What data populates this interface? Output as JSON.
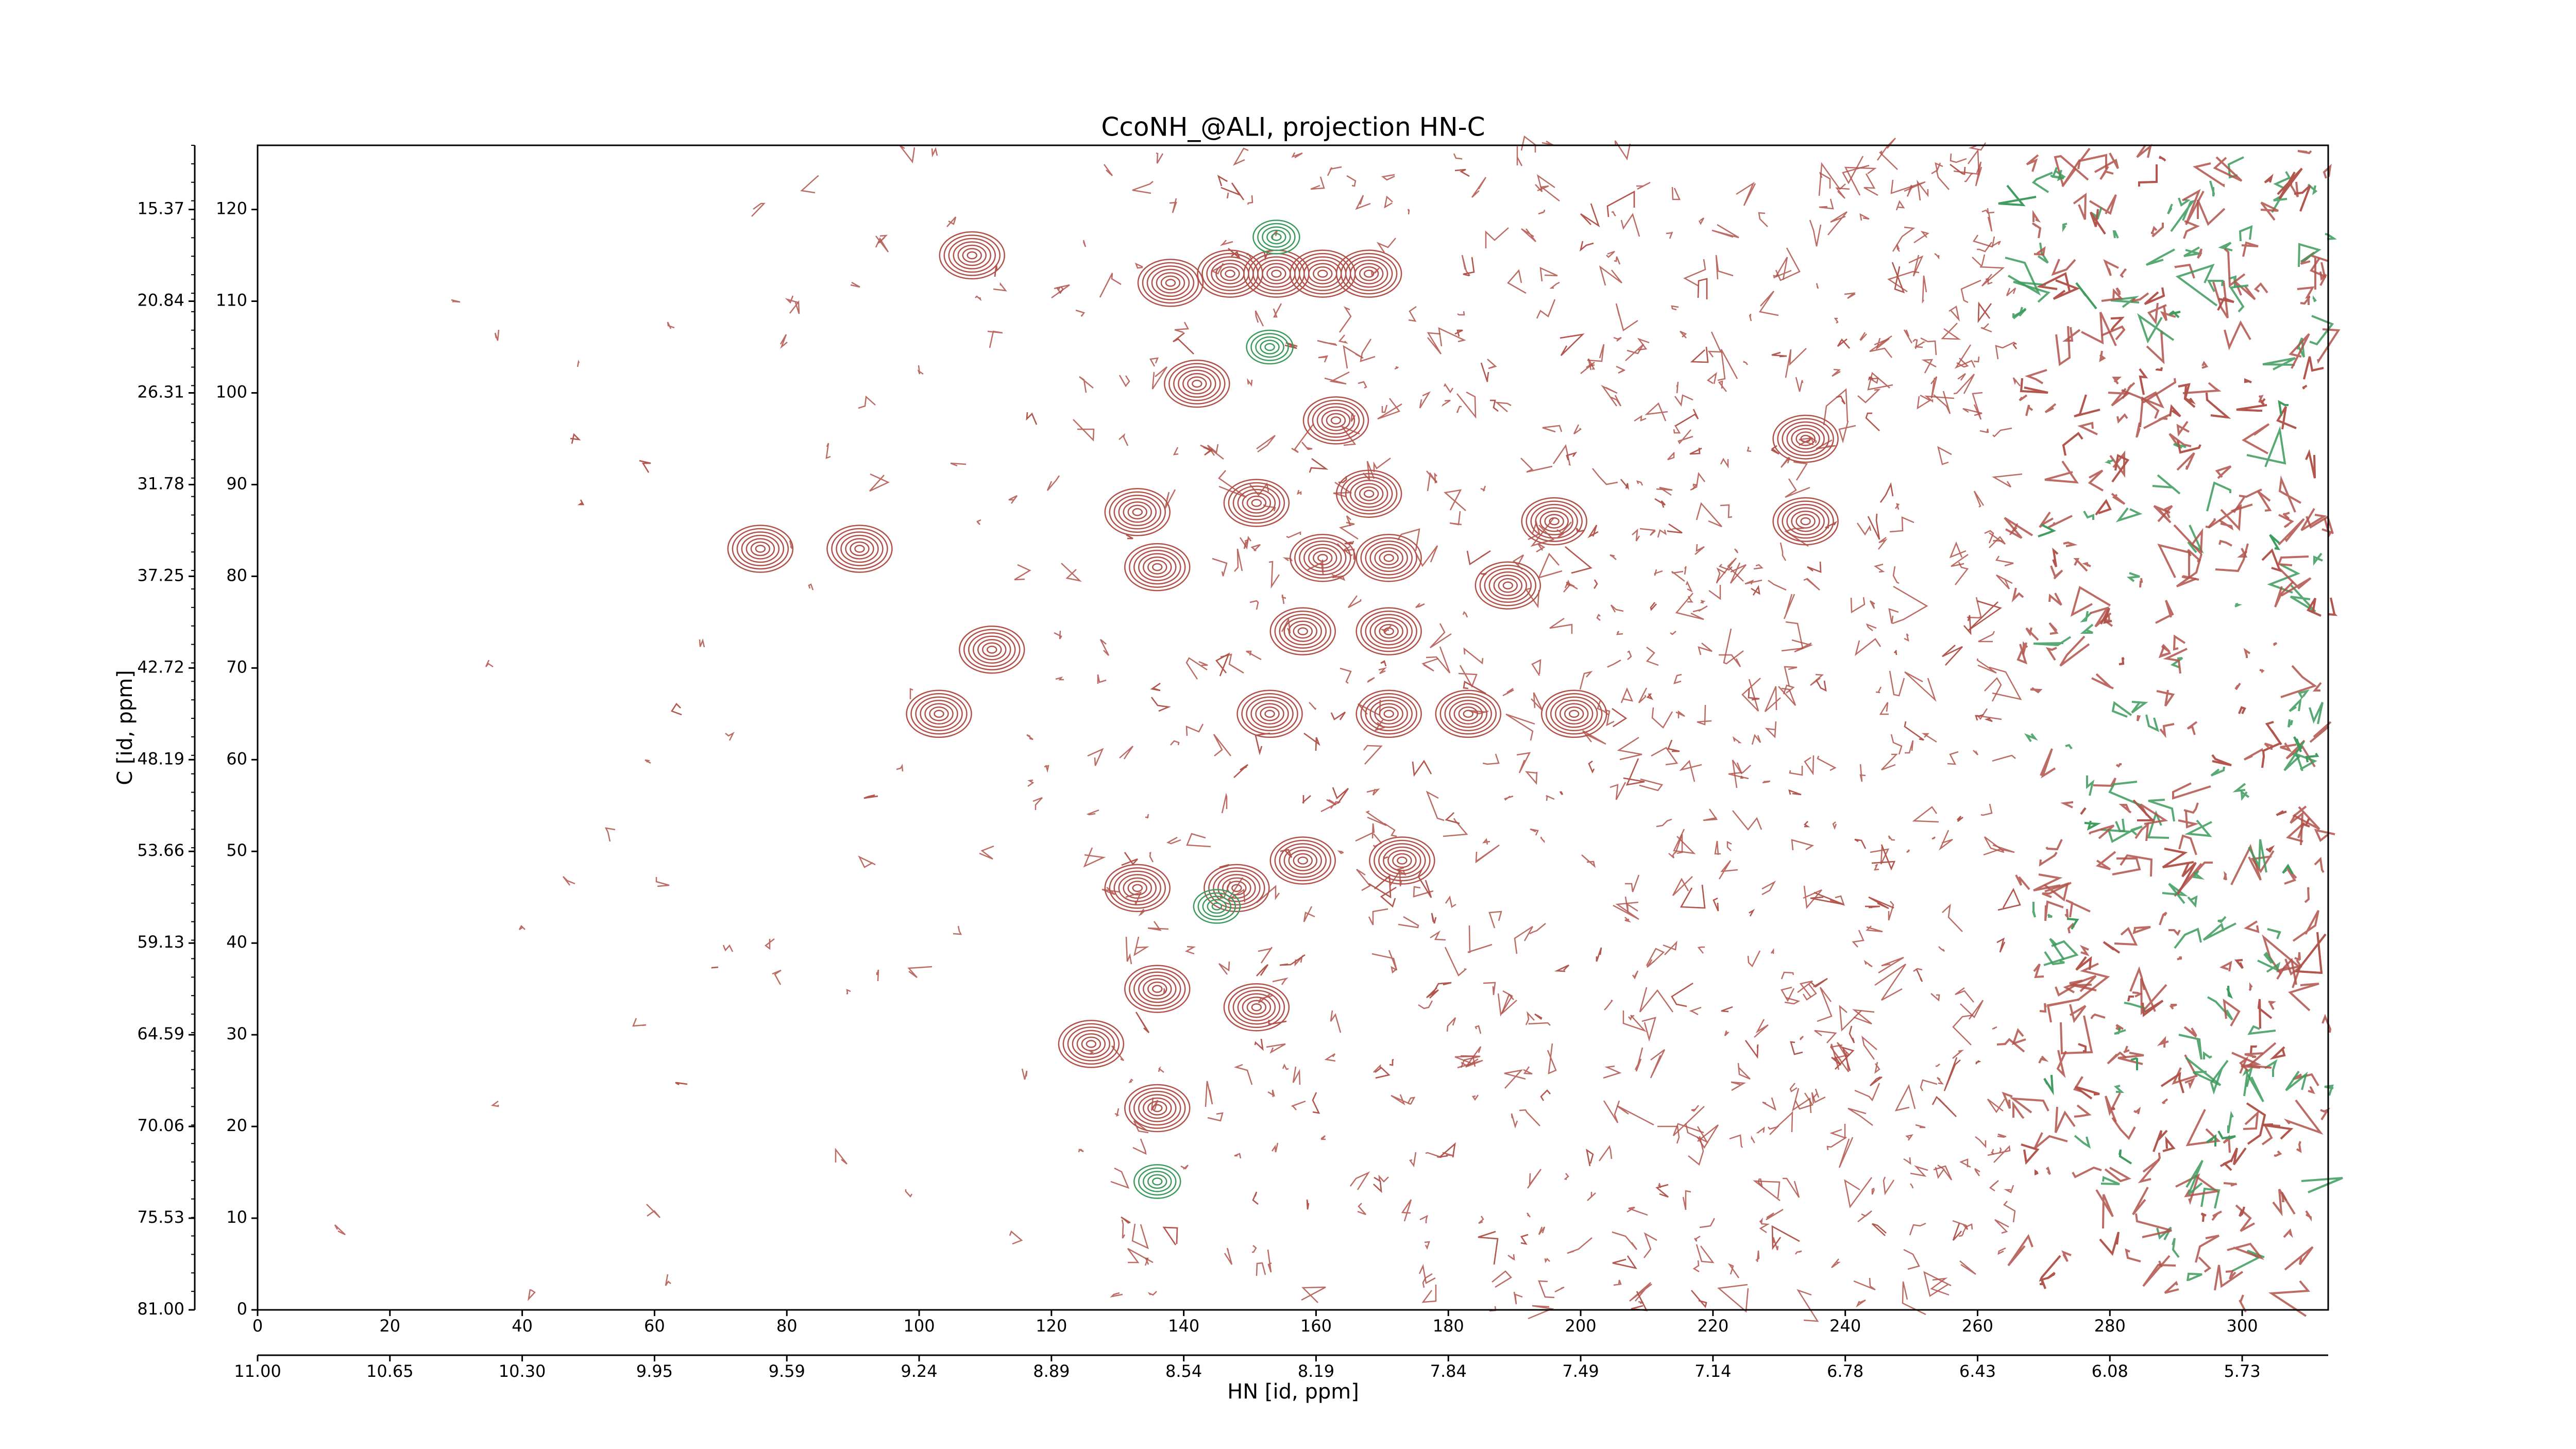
{
  "chart_data": {
    "type": "contour",
    "title": "CcoNH_@ALI, projection HN-C",
    "xlabel": "HN [id, ppm]",
    "ylabel": "C [id, ppm]",
    "xlim": [
      0,
      313
    ],
    "ylim": [
      0,
      127
    ],
    "xticks": [
      0,
      20,
      40,
      60,
      80,
      100,
      120,
      140,
      160,
      180,
      200,
      220,
      240,
      260,
      280,
      300
    ],
    "yticks": [
      0,
      10,
      20,
      30,
      40,
      50,
      60,
      70,
      80,
      90,
      100,
      110,
      120
    ],
    "x2ticks": [
      {
        "value": 0,
        "label": "11.00"
      },
      {
        "value": 20,
        "label": "10.65"
      },
      {
        "value": 40,
        "label": "10.30"
      },
      {
        "value": 60,
        "label": "9.95"
      },
      {
        "value": 80,
        "label": "9.59"
      },
      {
        "value": 100,
        "label": "9.24"
      },
      {
        "value": 120,
        "label": "8.89"
      },
      {
        "value": 140,
        "label": "8.54"
      },
      {
        "value": 160,
        "label": "8.19"
      },
      {
        "value": 180,
        "label": "7.84"
      },
      {
        "value": 200,
        "label": "7.49"
      },
      {
        "value": 220,
        "label": "7.14"
      },
      {
        "value": 240,
        "label": "6.78"
      },
      {
        "value": 260,
        "label": "6.43"
      },
      {
        "value": 280,
        "label": "6.08"
      },
      {
        "value": 300,
        "label": "5.73"
      }
    ],
    "y2ticks": [
      {
        "value": 0,
        "label": "81.00"
      },
      {
        "value": 10,
        "label": "75.53"
      },
      {
        "value": 20,
        "label": "70.06"
      },
      {
        "value": 30,
        "label": "64.59"
      },
      {
        "value": 40,
        "label": "59.13"
      },
      {
        "value": 50,
        "label": "53.66"
      },
      {
        "value": 60,
        "label": "48.19"
      },
      {
        "value": 70,
        "label": "42.72"
      },
      {
        "value": 80,
        "label": "37.25"
      },
      {
        "value": 90,
        "label": "31.78"
      },
      {
        "value": 100,
        "label": "26.31"
      },
      {
        "value": 110,
        "label": "20.84"
      },
      {
        "value": 120,
        "label": "15.37"
      }
    ],
    "series": [
      {
        "color": "#b0524a",
        "x": [
          138,
          147,
          154,
          161,
          168,
          142,
          163,
          133,
          151,
          168,
          136,
          161,
          171,
          158,
          171,
          153,
          171,
          183,
          199,
          133,
          148,
          158,
          173,
          136,
          151,
          136,
          126,
          103,
          111,
          108,
          234,
          234,
          196,
          189,
          76,
          91
        ],
        "y": [
          112,
          113,
          113,
          113,
          113,
          101,
          97,
          87,
          88,
          89,
          81,
          82,
          82,
          74,
          74,
          65,
          65,
          65,
          65,
          46,
          46,
          49,
          49,
          35,
          33,
          22,
          29,
          65,
          72,
          115,
          95,
          86,
          86,
          79,
          83,
          83
        ]
      },
      {
        "color": "#3c9a5c",
        "x": [
          153,
          136,
          154,
          145
        ],
        "y": [
          105,
          14,
          117,
          44
        ]
      }
    ]
  }
}
